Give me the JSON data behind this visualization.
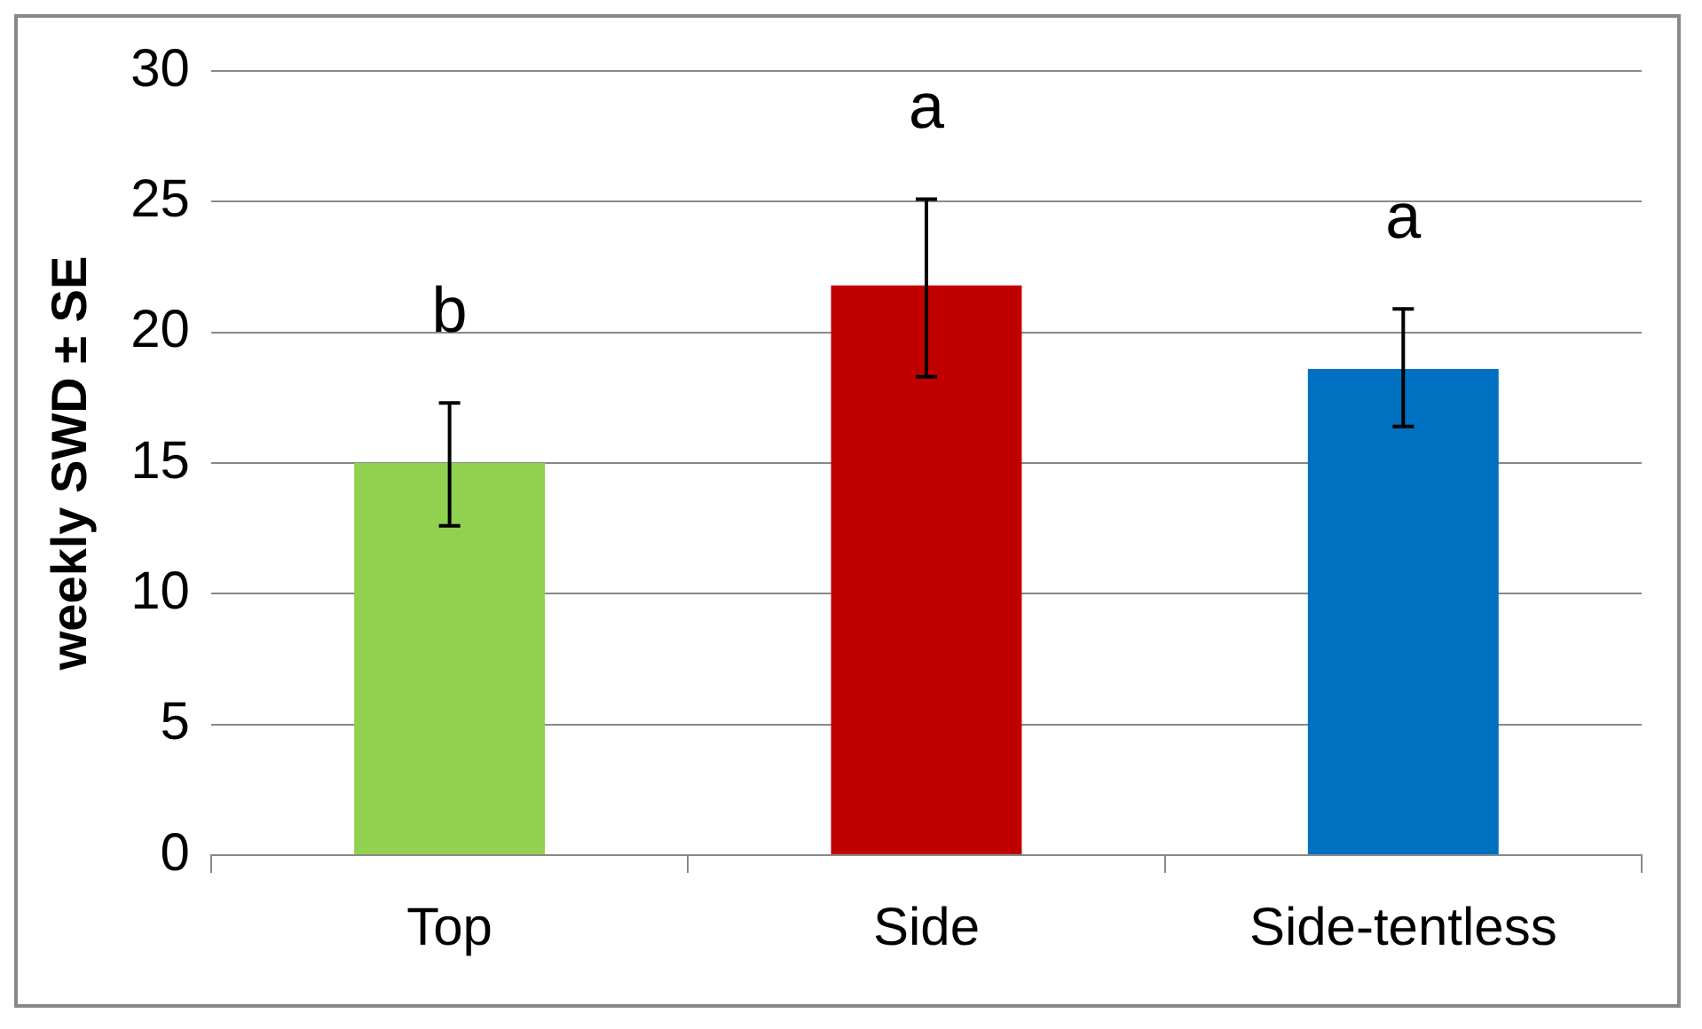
{
  "chart_data": {
    "type": "bar",
    "ylabel": "weekly SWD ± SE",
    "categories": [
      "Top",
      "Side",
      "Side-tentless"
    ],
    "values": [
      15,
      21.8,
      18.6
    ],
    "colors": [
      "#92d050",
      "#c00000",
      "#0070c0"
    ],
    "errors": [
      [
        12.6,
        17.3
      ],
      [
        18.3,
        25.1
      ],
      [
        16.4,
        20.9
      ]
    ],
    "ylim": [
      0,
      30
    ],
    "yticks": [
      0,
      5,
      10,
      15,
      20,
      25,
      30
    ],
    "grid": "y",
    "legend": false,
    "annotations": [
      "b",
      "a",
      "a"
    ]
  }
}
